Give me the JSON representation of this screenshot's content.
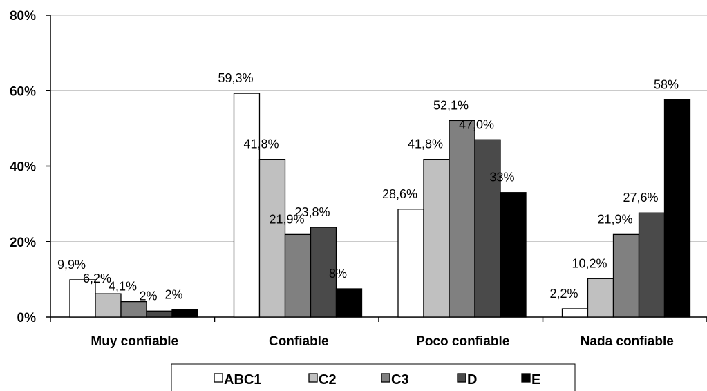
{
  "chart_data": {
    "type": "bar",
    "categories": [
      "Muy confiable",
      "Confiable",
      "Poco confiable",
      "Nada confiable"
    ],
    "series": [
      {
        "name": "ABC1",
        "color": "#ffffff",
        "values": [
          9.9,
          59.3,
          28.6,
          2.2
        ],
        "labels": [
          "9,9%",
          "59,3%",
          "28,6%",
          "2,2%"
        ]
      },
      {
        "name": "C2",
        "color": "#c0c0c0",
        "values": [
          6.2,
          41.8,
          41.8,
          10.2
        ],
        "labels": [
          "6,2%",
          "41,8%",
          "41,8%",
          "10,2%"
        ]
      },
      {
        "name": "C3",
        "color": "#808080",
        "values": [
          4.1,
          21.9,
          52.1,
          21.9
        ],
        "labels": [
          "4,1%",
          "21,9%",
          "52,1%",
          "21,9%"
        ]
      },
      {
        "name": "D",
        "color": "#4a4a4a",
        "values": [
          1.6,
          23.8,
          47.0,
          27.6
        ],
        "labels": [
          "2%",
          "23,8%",
          "47,0%",
          "27,6%"
        ]
      },
      {
        "name": "E",
        "color": "#000000",
        "values": [
          1.9,
          7.5,
          33.0,
          57.6
        ],
        "labels": [
          "2%",
          "8%",
          "33%",
          "58%"
        ]
      }
    ],
    "yticks": [
      0,
      20,
      40,
      60,
      80
    ],
    "ytick_labels": [
      "0%",
      "20%",
      "40%",
      "60%",
      "80%"
    ],
    "ylim": [
      0,
      80
    ],
    "grid": true,
    "legend_position": "bottom"
  }
}
